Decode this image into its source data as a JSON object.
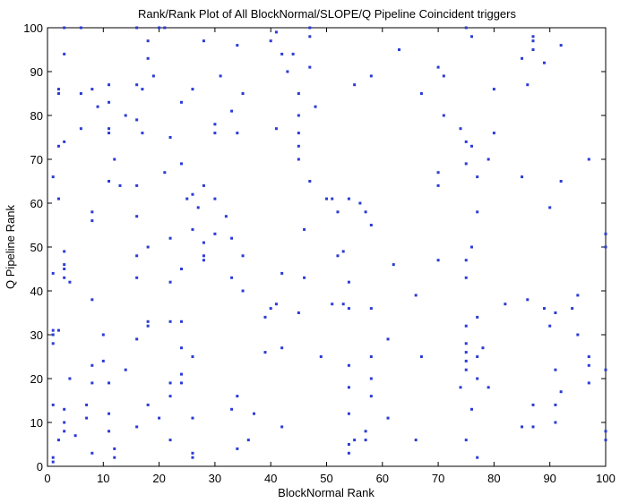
{
  "chart_data": {
    "type": "scatter",
    "title": "Rank/Rank Plot of All BlockNormal/SLOPE/Q Pipeline Coincident triggers",
    "xlabel": "BlockNormal Rank",
    "ylabel": "Q Pipeline Rank",
    "xlim": [
      0,
      100
    ],
    "ylim": [
      0,
      100
    ],
    "xticks": [
      "0",
      "10",
      "20",
      "30",
      "40",
      "50",
      "60",
      "70",
      "80",
      "90",
      "100"
    ],
    "yticks": [
      "0",
      "10",
      "20",
      "30",
      "40",
      "50",
      "60",
      "70",
      "80",
      "90",
      "100"
    ],
    "grid": false,
    "marker_color": "#2b3bd6",
    "points": [
      [
        1,
        1
      ],
      [
        1,
        2
      ],
      [
        1,
        14
      ],
      [
        1,
        28
      ],
      [
        1,
        30
      ],
      [
        1,
        31
      ],
      [
        1,
        44
      ],
      [
        1,
        66
      ],
      [
        2,
        6
      ],
      [
        2,
        31
      ],
      [
        2,
        61
      ],
      [
        2,
        73
      ],
      [
        2,
        85
      ],
      [
        2,
        86
      ],
      [
        3,
        8
      ],
      [
        3,
        10
      ],
      [
        3,
        13
      ],
      [
        3,
        43
      ],
      [
        3,
        45
      ],
      [
        3,
        46
      ],
      [
        3,
        49
      ],
      [
        3,
        74
      ],
      [
        3,
        94
      ],
      [
        3,
        100
      ],
      [
        4,
        20
      ],
      [
        4,
        42
      ],
      [
        5,
        7
      ],
      [
        6,
        77
      ],
      [
        6,
        85
      ],
      [
        6,
        100
      ],
      [
        7,
        11
      ],
      [
        7,
        14
      ],
      [
        8,
        3
      ],
      [
        8,
        19
      ],
      [
        8,
        23
      ],
      [
        8,
        38
      ],
      [
        8,
        56
      ],
      [
        8,
        58
      ],
      [
        8,
        86
      ],
      [
        9,
        82
      ],
      [
        10,
        24
      ],
      [
        10,
        30
      ],
      [
        11,
        8
      ],
      [
        11,
        12
      ],
      [
        11,
        19
      ],
      [
        11,
        65
      ],
      [
        11,
        76
      ],
      [
        11,
        77
      ],
      [
        11,
        83
      ],
      [
        11,
        87
      ],
      [
        12,
        2
      ],
      [
        12,
        4
      ],
      [
        12,
        70
      ],
      [
        13,
        64
      ],
      [
        14,
        22
      ],
      [
        14,
        80
      ],
      [
        16,
        9
      ],
      [
        16,
        29
      ],
      [
        16,
        43
      ],
      [
        16,
        48
      ],
      [
        16,
        57
      ],
      [
        16,
        64
      ],
      [
        16,
        79
      ],
      [
        16,
        87
      ],
      [
        16,
        100
      ],
      [
        17,
        76
      ],
      [
        17,
        86
      ],
      [
        18,
        14
      ],
      [
        18,
        32
      ],
      [
        18,
        33
      ],
      [
        18,
        50
      ],
      [
        18,
        93
      ],
      [
        18,
        97
      ],
      [
        19,
        89
      ],
      [
        20,
        11
      ],
      [
        20,
        100
      ],
      [
        21,
        67
      ],
      [
        21,
        100
      ],
      [
        22,
        6
      ],
      [
        22,
        16
      ],
      [
        22,
        19
      ],
      [
        22,
        33
      ],
      [
        22,
        42
      ],
      [
        22,
        52
      ],
      [
        22,
        75
      ],
      [
        24,
        19
      ],
      [
        24,
        21
      ],
      [
        24,
        27
      ],
      [
        24,
        33
      ],
      [
        24,
        45
      ],
      [
        24,
        69
      ],
      [
        24,
        83
      ],
      [
        25,
        61
      ],
      [
        26,
        2
      ],
      [
        26,
        3
      ],
      [
        26,
        11
      ],
      [
        26,
        25
      ],
      [
        26,
        54
      ],
      [
        26,
        62
      ],
      [
        26,
        86
      ],
      [
        27,
        59
      ],
      [
        28,
        47
      ],
      [
        28,
        48
      ],
      [
        28,
        51
      ],
      [
        28,
        64
      ],
      [
        28,
        97
      ],
      [
        30,
        53
      ],
      [
        30,
        61
      ],
      [
        30,
        76
      ],
      [
        30,
        78
      ],
      [
        31,
        89
      ],
      [
        32,
        57
      ],
      [
        33,
        13
      ],
      [
        33,
        43
      ],
      [
        33,
        52
      ],
      [
        33,
        81
      ],
      [
        34,
        4
      ],
      [
        34,
        16
      ],
      [
        34,
        76
      ],
      [
        34,
        96
      ],
      [
        35,
        40
      ],
      [
        35,
        48
      ],
      [
        35,
        85
      ],
      [
        36,
        6
      ],
      [
        37,
        12
      ],
      [
        39,
        26
      ],
      [
        39,
        34
      ],
      [
        40,
        36
      ],
      [
        40,
        97
      ],
      [
        41,
        37
      ],
      [
        41,
        77
      ],
      [
        41,
        99
      ],
      [
        42,
        9
      ],
      [
        42,
        27
      ],
      [
        42,
        44
      ],
      [
        42,
        94
      ],
      [
        43,
        90
      ],
      [
        44,
        94
      ],
      [
        45,
        35
      ],
      [
        45,
        70
      ],
      [
        45,
        73
      ],
      [
        45,
        76
      ],
      [
        45,
        80
      ],
      [
        45,
        85
      ],
      [
        46,
        43
      ],
      [
        46,
        54
      ],
      [
        47,
        65
      ],
      [
        47,
        91
      ],
      [
        47,
        98
      ],
      [
        47,
        100
      ],
      [
        48,
        82
      ],
      [
        49,
        25
      ],
      [
        50,
        61
      ],
      [
        51,
        37
      ],
      [
        51,
        61
      ],
      [
        52,
        48
      ],
      [
        52,
        58
      ],
      [
        53,
        37
      ],
      [
        53,
        49
      ],
      [
        54,
        3
      ],
      [
        54,
        5
      ],
      [
        54,
        12
      ],
      [
        54,
        18
      ],
      [
        54,
        23
      ],
      [
        54,
        36
      ],
      [
        54,
        42
      ],
      [
        54,
        61
      ],
      [
        55,
        6
      ],
      [
        55,
        87
      ],
      [
        56,
        60
      ],
      [
        57,
        6
      ],
      [
        57,
        8
      ],
      [
        57,
        58
      ],
      [
        58,
        16
      ],
      [
        58,
        20
      ],
      [
        58,
        25
      ],
      [
        58,
        36
      ],
      [
        58,
        55
      ],
      [
        58,
        89
      ],
      [
        61,
        11
      ],
      [
        61,
        29
      ],
      [
        62,
        46
      ],
      [
        63,
        95
      ],
      [
        66,
        6
      ],
      [
        66,
        39
      ],
      [
        67,
        25
      ],
      [
        67,
        85
      ],
      [
        70,
        47
      ],
      [
        70,
        64
      ],
      [
        70,
        67
      ],
      [
        70,
        91
      ],
      [
        71,
        80
      ],
      [
        71,
        89
      ],
      [
        74,
        18
      ],
      [
        74,
        77
      ],
      [
        75,
        6
      ],
      [
        75,
        22
      ],
      [
        75,
        24
      ],
      [
        75,
        26
      ],
      [
        75,
        28
      ],
      [
        75,
        32
      ],
      [
        75,
        43
      ],
      [
        75,
        47
      ],
      [
        75,
        69
      ],
      [
        75,
        74
      ],
      [
        75,
        100
      ],
      [
        76,
        13
      ],
      [
        76,
        50
      ],
      [
        76,
        73
      ],
      [
        76,
        98
      ],
      [
        77,
        2
      ],
      [
        77,
        20
      ],
      [
        77,
        25
      ],
      [
        77,
        34
      ],
      [
        77,
        58
      ],
      [
        77,
        66
      ],
      [
        78,
        27
      ],
      [
        79,
        18
      ],
      [
        79,
        70
      ],
      [
        80,
        76
      ],
      [
        80,
        86
      ],
      [
        82,
        37
      ],
      [
        85,
        9
      ],
      [
        85,
        66
      ],
      [
        85,
        93
      ],
      [
        86,
        38
      ],
      [
        86,
        87
      ],
      [
        87,
        9
      ],
      [
        87,
        14
      ],
      [
        87,
        95
      ],
      [
        87,
        97
      ],
      [
        87,
        98
      ],
      [
        89,
        36
      ],
      [
        89,
        92
      ],
      [
        90,
        32
      ],
      [
        90,
        59
      ],
      [
        91,
        10
      ],
      [
        91,
        14
      ],
      [
        91,
        22
      ],
      [
        91,
        35
      ],
      [
        92,
        17
      ],
      [
        92,
        65
      ],
      [
        92,
        96
      ],
      [
        94,
        36
      ],
      [
        95,
        30
      ],
      [
        95,
        39
      ],
      [
        97,
        19
      ],
      [
        97,
        23
      ],
      [
        97,
        25
      ],
      [
        97,
        70
      ],
      [
        100,
        6
      ],
      [
        100,
        8
      ],
      [
        100,
        22
      ],
      [
        100,
        50
      ],
      [
        100,
        53
      ]
    ]
  }
}
